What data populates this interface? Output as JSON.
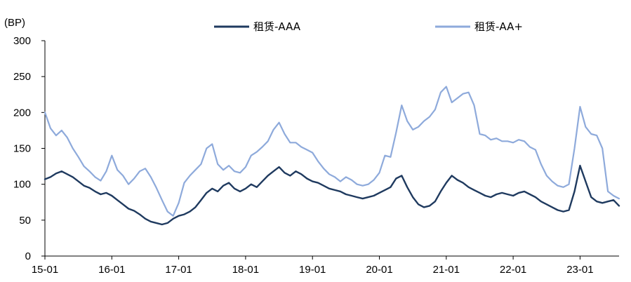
{
  "chart_data": {
    "type": "line",
    "unit_label": "(BP)",
    "xlabel": "",
    "ylabel": "",
    "x_ticks": [
      "15-01",
      "16-01",
      "17-01",
      "18-01",
      "19-01",
      "20-01",
      "21-01",
      "22-01",
      "23-01"
    ],
    "y_ticks": [
      0,
      50,
      100,
      150,
      200,
      250,
      300
    ],
    "ylim": [
      0,
      300
    ],
    "x_range": [
      "2015-01",
      "2023-08"
    ],
    "grid": false,
    "legend_position": "top",
    "series": [
      {
        "name": "租赁-AAA",
        "color": "#1f3a5f",
        "points": [
          [
            "2015-01",
            107
          ],
          [
            "2015-02",
            110
          ],
          [
            "2015-03",
            115
          ],
          [
            "2015-04",
            118
          ],
          [
            "2015-05",
            114
          ],
          [
            "2015-06",
            110
          ],
          [
            "2015-07",
            104
          ],
          [
            "2015-08",
            98
          ],
          [
            "2015-09",
            95
          ],
          [
            "2015-10",
            90
          ],
          [
            "2015-11",
            86
          ],
          [
            "2015-12",
            88
          ],
          [
            "2016-01",
            84
          ],
          [
            "2016-02",
            78
          ],
          [
            "2016-03",
            72
          ],
          [
            "2016-04",
            66
          ],
          [
            "2016-05",
            63
          ],
          [
            "2016-06",
            58
          ],
          [
            "2016-07",
            52
          ],
          [
            "2016-08",
            48
          ],
          [
            "2016-09",
            46
          ],
          [
            "2016-10",
            44
          ],
          [
            "2016-11",
            46
          ],
          [
            "2016-12",
            52
          ],
          [
            "2017-01",
            56
          ],
          [
            "2017-02",
            58
          ],
          [
            "2017-03",
            62
          ],
          [
            "2017-04",
            68
          ],
          [
            "2017-05",
            78
          ],
          [
            "2017-06",
            88
          ],
          [
            "2017-07",
            94
          ],
          [
            "2017-08",
            90
          ],
          [
            "2017-09",
            98
          ],
          [
            "2017-10",
            102
          ],
          [
            "2017-11",
            94
          ],
          [
            "2017-12",
            90
          ],
          [
            "2018-01",
            94
          ],
          [
            "2018-02",
            100
          ],
          [
            "2018-03",
            96
          ],
          [
            "2018-04",
            104
          ],
          [
            "2018-05",
            112
          ],
          [
            "2018-06",
            118
          ],
          [
            "2018-07",
            124
          ],
          [
            "2018-08",
            116
          ],
          [
            "2018-09",
            112
          ],
          [
            "2018-10",
            118
          ],
          [
            "2018-11",
            114
          ],
          [
            "2018-12",
            108
          ],
          [
            "2019-01",
            104
          ],
          [
            "2019-02",
            102
          ],
          [
            "2019-03",
            98
          ],
          [
            "2019-04",
            94
          ],
          [
            "2019-05",
            92
          ],
          [
            "2019-06",
            90
          ],
          [
            "2019-07",
            86
          ],
          [
            "2019-08",
            84
          ],
          [
            "2019-09",
            82
          ],
          [
            "2019-10",
            80
          ],
          [
            "2019-11",
            82
          ],
          [
            "2019-12",
            84
          ],
          [
            "2020-01",
            88
          ],
          [
            "2020-02",
            92
          ],
          [
            "2020-03",
            96
          ],
          [
            "2020-04",
            108
          ],
          [
            "2020-05",
            112
          ],
          [
            "2020-06",
            96
          ],
          [
            "2020-07",
            82
          ],
          [
            "2020-08",
            72
          ],
          [
            "2020-09",
            68
          ],
          [
            "2020-10",
            70
          ],
          [
            "2020-11",
            76
          ],
          [
            "2020-12",
            90
          ],
          [
            "2021-01",
            102
          ],
          [
            "2021-02",
            112
          ],
          [
            "2021-03",
            106
          ],
          [
            "2021-04",
            102
          ],
          [
            "2021-05",
            96
          ],
          [
            "2021-06",
            92
          ],
          [
            "2021-07",
            88
          ],
          [
            "2021-08",
            84
          ],
          [
            "2021-09",
            82
          ],
          [
            "2021-10",
            86
          ],
          [
            "2021-11",
            88
          ],
          [
            "2021-12",
            86
          ],
          [
            "2022-01",
            84
          ],
          [
            "2022-02",
            88
          ],
          [
            "2022-03",
            90
          ],
          [
            "2022-04",
            86
          ],
          [
            "2022-05",
            82
          ],
          [
            "2022-06",
            76
          ],
          [
            "2022-07",
            72
          ],
          [
            "2022-08",
            68
          ],
          [
            "2022-09",
            64
          ],
          [
            "2022-10",
            62
          ],
          [
            "2022-11",
            64
          ],
          [
            "2022-12",
            90
          ],
          [
            "2023-01",
            126
          ],
          [
            "2023-02",
            104
          ],
          [
            "2023-03",
            82
          ],
          [
            "2023-04",
            76
          ],
          [
            "2023-05",
            74
          ],
          [
            "2023-06",
            76
          ],
          [
            "2023-07",
            78
          ],
          [
            "2023-08",
            70
          ]
        ]
      },
      {
        "name": "租赁-AA+",
        "color": "#8eaadb",
        "points": [
          [
            "2015-01",
            200
          ],
          [
            "2015-02",
            178
          ],
          [
            "2015-03",
            168
          ],
          [
            "2015-04",
            175
          ],
          [
            "2015-05",
            165
          ],
          [
            "2015-06",
            150
          ],
          [
            "2015-07",
            138
          ],
          [
            "2015-08",
            125
          ],
          [
            "2015-09",
            118
          ],
          [
            "2015-10",
            110
          ],
          [
            "2015-11",
            105
          ],
          [
            "2015-12",
            118
          ],
          [
            "2016-01",
            140
          ],
          [
            "2016-02",
            120
          ],
          [
            "2016-03",
            112
          ],
          [
            "2016-04",
            100
          ],
          [
            "2016-05",
            108
          ],
          [
            "2016-06",
            118
          ],
          [
            "2016-07",
            122
          ],
          [
            "2016-08",
            110
          ],
          [
            "2016-09",
            95
          ],
          [
            "2016-10",
            78
          ],
          [
            "2016-11",
            62
          ],
          [
            "2016-12",
            56
          ],
          [
            "2017-01",
            74
          ],
          [
            "2017-02",
            102
          ],
          [
            "2017-03",
            112
          ],
          [
            "2017-04",
            120
          ],
          [
            "2017-05",
            128
          ],
          [
            "2017-06",
            150
          ],
          [
            "2017-07",
            156
          ],
          [
            "2017-08",
            128
          ],
          [
            "2017-09",
            120
          ],
          [
            "2017-10",
            126
          ],
          [
            "2017-11",
            118
          ],
          [
            "2017-12",
            116
          ],
          [
            "2018-01",
            124
          ],
          [
            "2018-02",
            140
          ],
          [
            "2018-03",
            145
          ],
          [
            "2018-04",
            152
          ],
          [
            "2018-05",
            160
          ],
          [
            "2018-06",
            176
          ],
          [
            "2018-07",
            186
          ],
          [
            "2018-08",
            170
          ],
          [
            "2018-09",
            158
          ],
          [
            "2018-10",
            158
          ],
          [
            "2018-11",
            152
          ],
          [
            "2018-12",
            148
          ],
          [
            "2019-01",
            144
          ],
          [
            "2019-02",
            132
          ],
          [
            "2019-03",
            122
          ],
          [
            "2019-04",
            114
          ],
          [
            "2019-05",
            110
          ],
          [
            "2019-06",
            104
          ],
          [
            "2019-07",
            110
          ],
          [
            "2019-08",
            106
          ],
          [
            "2019-09",
            100
          ],
          [
            "2019-10",
            98
          ],
          [
            "2019-11",
            100
          ],
          [
            "2019-12",
            106
          ],
          [
            "2020-01",
            116
          ],
          [
            "2020-02",
            140
          ],
          [
            "2020-03",
            138
          ],
          [
            "2020-04",
            172
          ],
          [
            "2020-05",
            210
          ],
          [
            "2020-06",
            188
          ],
          [
            "2020-07",
            176
          ],
          [
            "2020-08",
            180
          ],
          [
            "2020-09",
            188
          ],
          [
            "2020-10",
            194
          ],
          [
            "2020-11",
            204
          ],
          [
            "2020-12",
            228
          ],
          [
            "2021-01",
            236
          ],
          [
            "2021-02",
            214
          ],
          [
            "2021-03",
            220
          ],
          [
            "2021-04",
            226
          ],
          [
            "2021-05",
            228
          ],
          [
            "2021-06",
            210
          ],
          [
            "2021-07",
            170
          ],
          [
            "2021-08",
            168
          ],
          [
            "2021-09",
            162
          ],
          [
            "2021-10",
            164
          ],
          [
            "2021-11",
            160
          ],
          [
            "2021-12",
            160
          ],
          [
            "2022-01",
            158
          ],
          [
            "2022-02",
            162
          ],
          [
            "2022-03",
            160
          ],
          [
            "2022-04",
            152
          ],
          [
            "2022-05",
            148
          ],
          [
            "2022-06",
            128
          ],
          [
            "2022-07",
            112
          ],
          [
            "2022-08",
            104
          ],
          [
            "2022-09",
            98
          ],
          [
            "2022-10",
            96
          ],
          [
            "2022-11",
            100
          ],
          [
            "2022-12",
            150
          ],
          [
            "2023-01",
            208
          ],
          [
            "2023-02",
            180
          ],
          [
            "2023-03",
            170
          ],
          [
            "2023-04",
            168
          ],
          [
            "2023-05",
            150
          ],
          [
            "2023-06",
            90
          ],
          [
            "2023-07",
            84
          ],
          [
            "2023-08",
            80
          ]
        ]
      }
    ]
  }
}
